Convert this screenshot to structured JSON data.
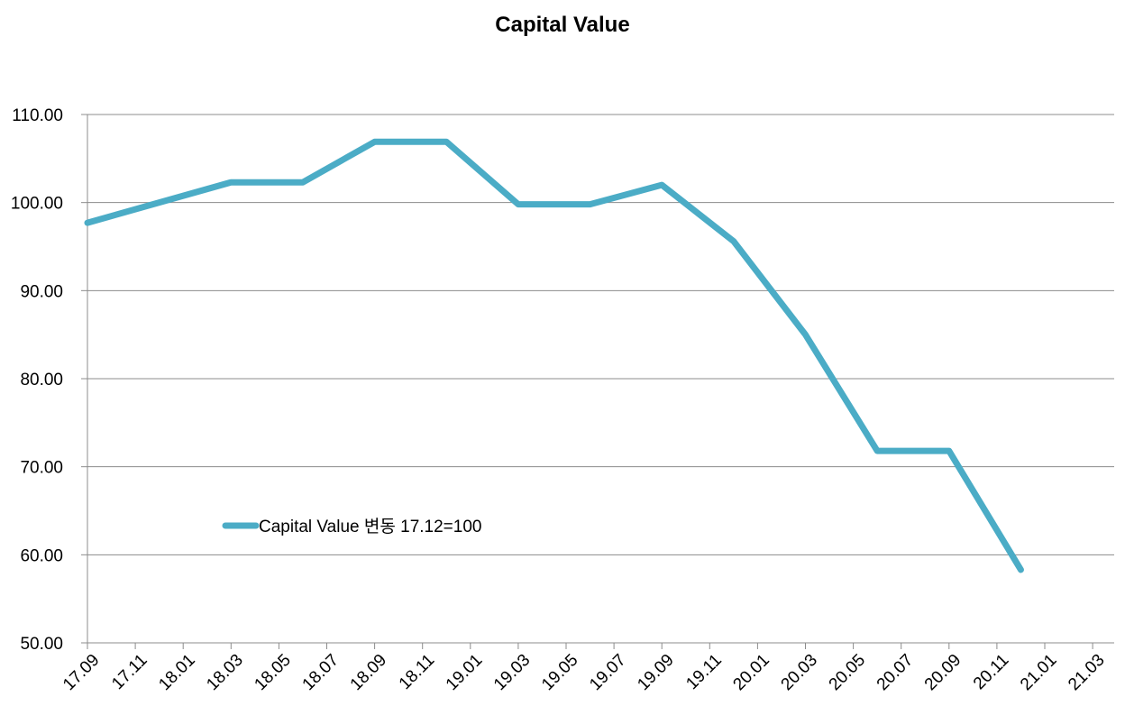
{
  "chart_data": {
    "type": "line",
    "title": "Capital Value",
    "xlabel": "",
    "ylabel": "",
    "ylim": [
      50,
      110
    ],
    "yticks": [
      "50.00",
      "60.00",
      "70.00",
      "80.00",
      "90.00",
      "100.00",
      "110.00"
    ],
    "xticks": [
      "17.09",
      "17.11",
      "18.01",
      "18.03",
      "18.05",
      "18.07",
      "18.09",
      "18.11",
      "19.01",
      "19.03",
      "19.05",
      "19.07",
      "19.09",
      "19.11",
      "20.01",
      "20.03",
      "20.05",
      "20.07",
      "20.09",
      "20.11",
      "21.01",
      "21.03"
    ],
    "grid": true,
    "legend_position": "center-left",
    "series": [
      {
        "name": "Capital Value 변동 17.12=100",
        "color": "#4BACC6",
        "points": [
          {
            "x": "17.09",
            "y": 97.7
          },
          {
            "x": "17.12",
            "y": 100.0
          },
          {
            "x": "18.03",
            "y": 102.3
          },
          {
            "x": "18.06",
            "y": 102.3
          },
          {
            "x": "18.09",
            "y": 106.9
          },
          {
            "x": "18.12",
            "y": 106.9
          },
          {
            "x": "19.03",
            "y": 99.8
          },
          {
            "x": "19.06",
            "y": 99.8
          },
          {
            "x": "19.09",
            "y": 102.0
          },
          {
            "x": "19.12",
            "y": 95.6
          },
          {
            "x": "20.03",
            "y": 85.0
          },
          {
            "x": "20.06",
            "y": 71.8
          },
          {
            "x": "20.09",
            "y": 71.8
          },
          {
            "x": "20.12",
            "y": 58.3
          }
        ]
      }
    ]
  }
}
